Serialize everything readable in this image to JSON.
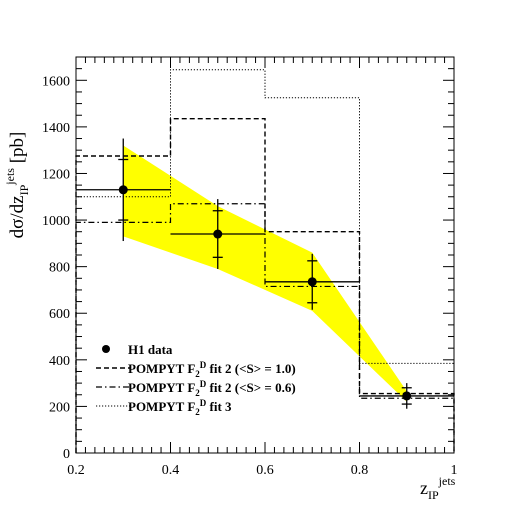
{
  "chart_data": {
    "type": "step-histogram",
    "title": "",
    "xlabel": {
      "main": "z",
      "sub": "IP",
      "sup": "jets"
    },
    "ylabel": {
      "main": "dσ/dz",
      "sub": "IP",
      "sup": "jets",
      "unit": "[pb]"
    },
    "xlim": [
      0.2,
      1.0
    ],
    "ylim": [
      0,
      1700
    ],
    "x_ticks": [
      "0.2",
      "0.4",
      "0.6",
      "0.8",
      "1"
    ],
    "y_ticks": [
      "0",
      "200",
      "400",
      "600",
      "800",
      "1000",
      "1200",
      "1400",
      "1600"
    ],
    "bin_edges": [
      0.2,
      0.4,
      0.6,
      0.8,
      1.0
    ],
    "band": {
      "color": "#ffff00",
      "x": [
        0.3,
        0.5,
        0.7,
        0.9
      ],
      "lower": [
        930,
        790,
        610,
        220
      ],
      "upper": [
        1320,
        1060,
        860,
        265
      ]
    },
    "data_points": {
      "name": "H1 data",
      "x": [
        0.3,
        0.5,
        0.7,
        0.9
      ],
      "y": [
        1130,
        940,
        735,
        245
      ],
      "x_err": [
        0.1,
        0.1,
        0.1,
        0.1
      ],
      "stat_err": [
        130,
        100,
        90,
        35
      ],
      "total_err": [
        220,
        150,
        120,
        55
      ]
    },
    "series": [
      {
        "name": "fit2_S10",
        "style": "dashed",
        "values": [
          1275,
          1435,
          950,
          255
        ]
      },
      {
        "name": "fit2_S06",
        "style": "dashdot",
        "values": [
          990,
          1070,
          715,
          235
        ]
      },
      {
        "name": "fit3",
        "style": "dotted",
        "values": [
          1100,
          1645,
          1525,
          385
        ]
      }
    ],
    "legend": {
      "placement": "bottom-left",
      "entries": [
        {
          "key": "data",
          "parts": [
            "H1 data"
          ]
        },
        {
          "key": "fit2_S10",
          "parts": [
            "POMPYT F",
            "2",
            "D",
            " fit 2 (<S> = 1.0)"
          ]
        },
        {
          "key": "fit2_S06",
          "parts": [
            "POMPYT F",
            "2",
            "D",
            " fit 2 (<S> = 0.6)"
          ]
        },
        {
          "key": "fit3",
          "parts": [
            "POMPYT F",
            "2",
            "D",
            " fit 3"
          ]
        }
      ]
    }
  }
}
